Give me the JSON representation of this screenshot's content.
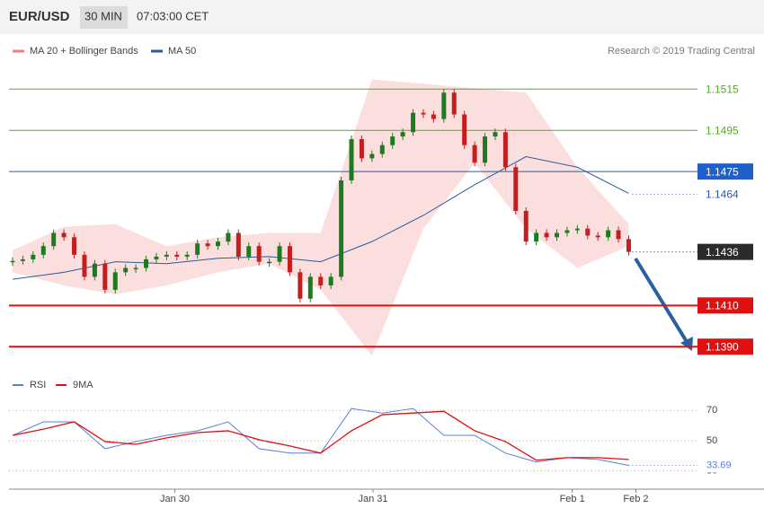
{
  "chart_data": {
    "type": "candlestick",
    "header": {
      "symbol": "EUR/USD",
      "interval": "30 MIN",
      "time": "07:03:00 CET"
    },
    "legend": [
      {
        "name": "MA 20 + Bollinger Bands",
        "color": "#f08080"
      },
      {
        "name": "MA 50",
        "color": "#2a5a9a"
      }
    ],
    "credit": "Research © 2019 Trading Central",
    "up_color": "#1e7a1e",
    "down_color": "#c41e1e",
    "xlim": [
      -0.35,
      72.3
    ],
    "xticks": [
      {
        "value": 15.8,
        "label": "Jan 30"
      },
      {
        "value": 35.1,
        "label": "Jan 31"
      },
      {
        "value": 54.5,
        "label": "Feb 1"
      },
      {
        "value": 60.7,
        "label": "Feb 2"
      }
    ],
    "ylim": [
      1.1384,
      1.1543
    ],
    "close": [
      1.14316,
      1.14324,
      1.14346,
      1.14388,
      1.14452,
      1.14431,
      1.14346,
      1.14239,
      1.14303,
      1.14176,
      1.14261,
      1.14282,
      1.14282,
      1.14324,
      1.14337,
      1.14346,
      1.14337,
      1.14346,
      1.14401,
      1.14388,
      1.1441,
      1.14452,
      1.14337,
      1.14388,
      1.14312,
      1.14312,
      1.14388,
      1.14261,
      1.14133,
      1.14239,
      1.14197,
      1.14239,
      1.14707,
      1.14907,
      1.14814,
      1.14835,
      1.14878,
      1.1492,
      1.14941,
      1.15035,
      1.15027,
      1.15005,
      1.15133,
      1.15027,
      1.14878,
      1.14793,
      1.1492,
      1.14941,
      1.14771,
      1.14559,
      1.1441,
      1.14452,
      1.14431,
      1.14452,
      1.14465,
      1.14473,
      1.14439,
      1.14431,
      1.14465,
      1.14422,
      1.1436
    ],
    "band_upper": [
      1.14367,
      1.14482,
      1.14495,
      1.14388,
      1.14431,
      1.14452,
      1.14452,
      1.15197,
      1.15176,
      1.15154,
      1.15133,
      1.14771,
      1.14495
    ],
    "band_lower": [
      1.14261,
      1.14197,
      1.14154,
      1.14197,
      1.14261,
      1.14303,
      1.14176,
      1.13856,
      1.14473,
      1.14793,
      1.14473,
      1.14282,
      1.14388
    ],
    "ma50": [
      1.14227,
      1.14261,
      1.14312,
      1.14303,
      1.14329,
      1.14337,
      1.14312,
      1.1441,
      1.14537,
      1.14686,
      1.14822,
      1.14771,
      1.14644
    ],
    "levels": [
      {
        "price": 1.1515,
        "color": "#5aa82a",
        "style": "solid",
        "box": "#ffffff",
        "text": "#5aa82a"
      },
      {
        "price": 1.1495,
        "color": "#5aa82a",
        "style": "solid",
        "box": "#ffffff",
        "text": "#5aa82a"
      },
      {
        "price": 1.1475,
        "color": "#2a5aa8",
        "style": "solid",
        "box": "#1f5fc8",
        "text": "#ffffff"
      },
      {
        "price": 1.1464,
        "color": "#2a5aa8",
        "style": "dotted",
        "box": "#ffffff",
        "text": "#2a5aa8"
      },
      {
        "price": 1.1436,
        "color": "#333333",
        "style": "dotted",
        "box": "#2b2b2b",
        "text": "#ffffff"
      },
      {
        "price": 1.141,
        "label": "1.1410",
        "color": "#e01010",
        "style": "solid",
        "box": "#e01010",
        "text": "#ffffff"
      },
      {
        "price": 1.139,
        "label": "1.1390",
        "color": "#e01010",
        "style": "solid",
        "box": "#e01010",
        "text": "#ffffff"
      }
    ],
    "rsi": {
      "ylim": [
        18,
        92
      ],
      "yticks": [
        30,
        50,
        70
      ],
      "series": [
        {
          "name": "RSI",
          "color": "#5b7fd6",
          "values": [
            53.5,
            62.4,
            62.4,
            44.7,
            49.4,
            53.5,
            56.5,
            62.4,
            44.7,
            41.8,
            41.8,
            71.2,
            68.2,
            71.2,
            53.5,
            53.5,
            41.8,
            35.9,
            38.8,
            37.6,
            33.69
          ]
        },
        {
          "name": "9MA",
          "color": "#e01010",
          "values": [
            53.5,
            57.6,
            62.4,
            49.4,
            47.6,
            51.8,
            55.3,
            56.5,
            50.6,
            46.5,
            41.8,
            56.5,
            67.1,
            68.2,
            69.4,
            56.5,
            49.4,
            37.1,
            38.8,
            38.8,
            37.6
          ]
        }
      ],
      "last": 33.69
    }
  }
}
